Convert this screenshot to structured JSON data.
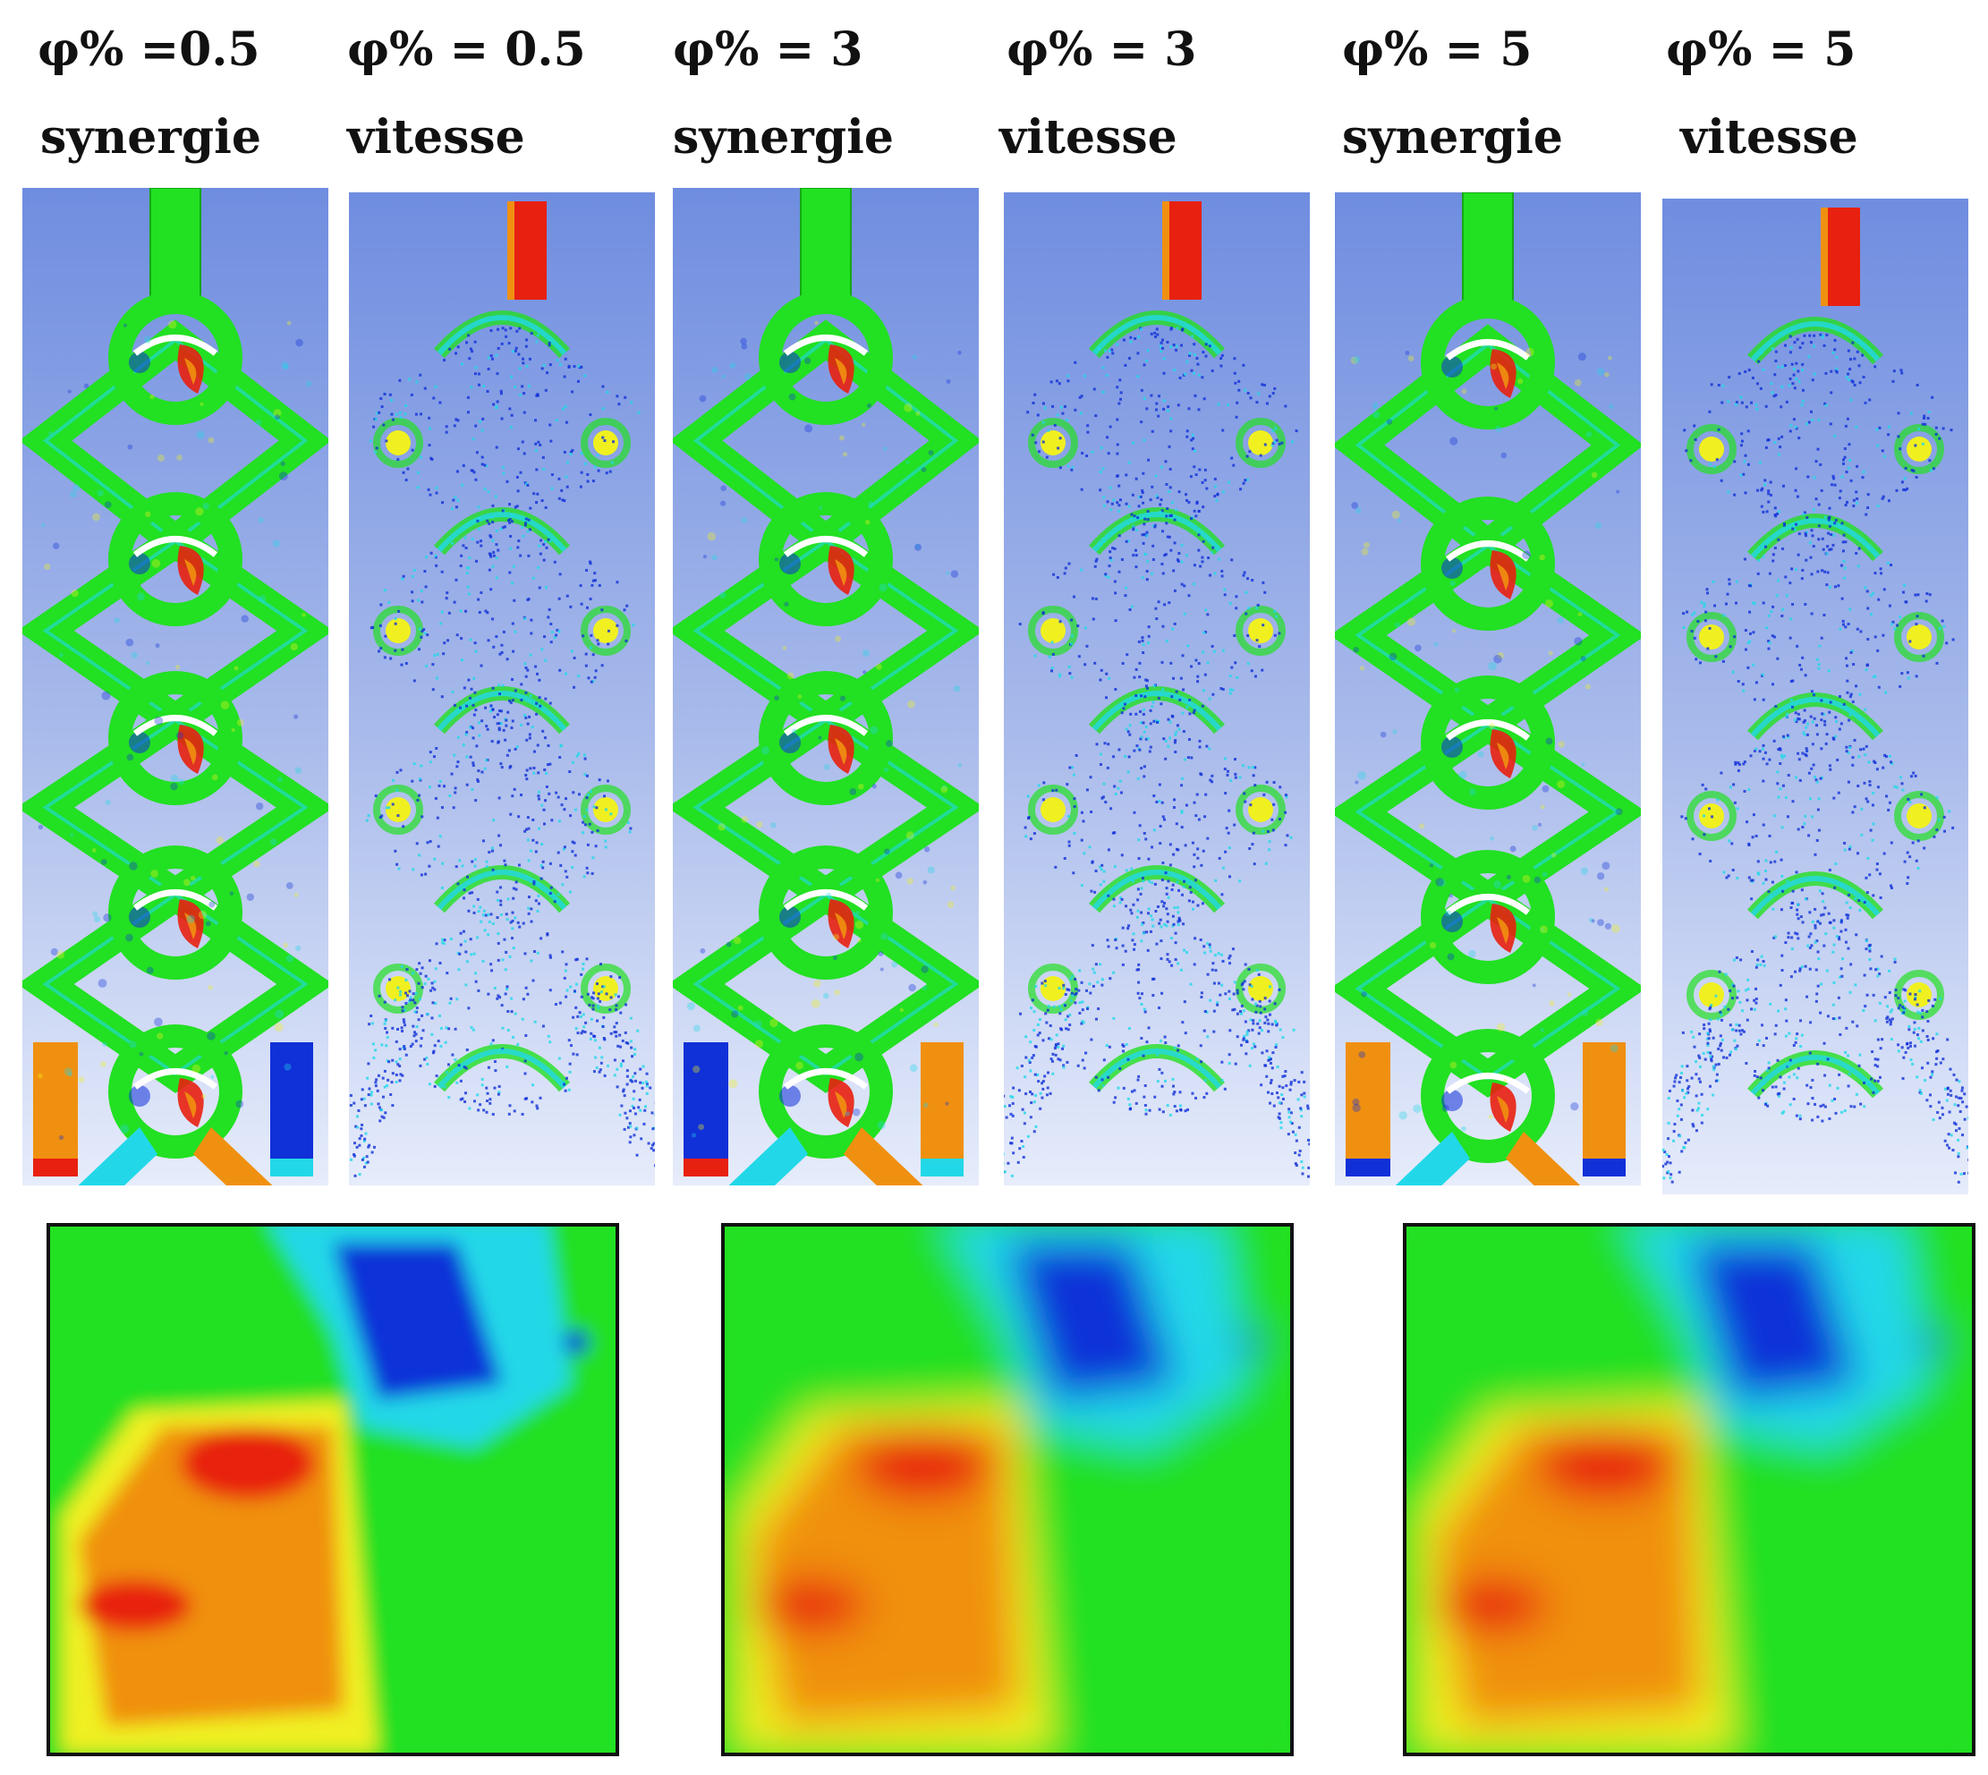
{
  "columns": [
    {
      "phi": "φ% =0.5",
      "kind": "synergie"
    },
    {
      "phi": "φ% = 0.5",
      "kind": "vitesse"
    },
    {
      "phi": "φ% = 3",
      "kind": "synergie"
    },
    {
      "phi": "φ% = 3",
      "kind": "vitesse"
    },
    {
      "phi": "φ% = 5",
      "kind": "synergie"
    },
    {
      "phi": "φ% = 5",
      "kind": "vitesse"
    }
  ],
  "colors": {
    "background_top": "#6f8de0",
    "background_bottom": "#e6ecfb",
    "green": "#22e022",
    "cyan": "#22d8e8",
    "blue": "#1030d8",
    "yellow": "#f0f020",
    "orange": "#f09010",
    "red": "#e82010",
    "frame": "#111111"
  }
}
